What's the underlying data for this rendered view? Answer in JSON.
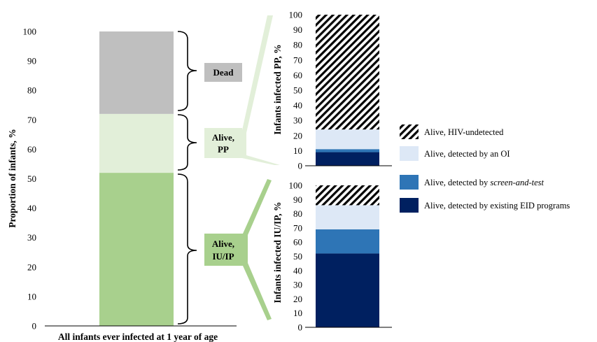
{
  "chart_data": [
    {
      "type": "bar",
      "stacked": true,
      "categories": [
        "All infants ever infected at 1 year of age"
      ],
      "xlabel": "All infants ever infected at 1 year of age",
      "ylabel": "Proportion of infants, %",
      "ylim": [
        0,
        100
      ],
      "yticks": [
        "0",
        "10",
        "20",
        "30",
        "40",
        "50",
        "60",
        "70",
        "80",
        "90",
        "100"
      ],
      "series": [
        {
          "name": "Alive, IU/IP",
          "values": [
            52
          ],
          "color": "#a8d08d"
        },
        {
          "name": "Alive, PP",
          "values": [
            20
          ],
          "color": "#e2efd9"
        },
        {
          "name": "Dead",
          "values": [
            28
          ],
          "color": "#bfbfbf"
        }
      ],
      "brace_labels": {
        "dead": "Dead",
        "pp_line1": "Alive,",
        "pp_line2": "PP",
        "iuip_line1": "Alive,",
        "iuip_line2": "IU/IP"
      }
    },
    {
      "type": "bar",
      "stacked": true,
      "ylabel": "Infants infected PP, %",
      "ylim": [
        0,
        100
      ],
      "yticks": [
        "0",
        "10",
        "20",
        "30",
        "40",
        "50",
        "60",
        "70",
        "80",
        "90",
        "100"
      ],
      "series": [
        {
          "name": "Alive, detected by existing EID programs",
          "values": [
            9
          ]
        },
        {
          "name": "Alive, detected by screen-and-test",
          "values": [
            2
          ]
        },
        {
          "name": "Alive, detected by an OI",
          "values": [
            13
          ]
        },
        {
          "name": "Alive, HIV-undetected",
          "values": [
            76
          ]
        }
      ]
    },
    {
      "type": "bar",
      "stacked": true,
      "ylabel": "Infants infected IU/IP, %",
      "ylim": [
        0,
        100
      ],
      "yticks": [
        "0",
        "10",
        "20",
        "30",
        "40",
        "50",
        "60",
        "70",
        "80",
        "90",
        "100"
      ],
      "series": [
        {
          "name": "Alive, detected by existing EID programs",
          "values": [
            52
          ]
        },
        {
          "name": "Alive, detected by screen-and-test",
          "values": [
            17
          ]
        },
        {
          "name": "Alive, detected by an OI",
          "values": [
            17
          ]
        },
        {
          "name": "Alive, HIV-undetected",
          "values": [
            14
          ]
        }
      ]
    }
  ],
  "legend": [
    {
      "prefix": "Alive, HIV-undetected",
      "italic": "",
      "swatch": "hatch"
    },
    {
      "prefix": "Alive, detected by an OI",
      "italic": "",
      "swatch": "#dde8f6"
    },
    {
      "prefix": "Alive, detected by ",
      "italic": "screen-and-test",
      "swatch": "#2e75b6"
    },
    {
      "prefix": "Alive, detected by existing EID programs",
      "italic": "",
      "swatch": "#002060"
    }
  ],
  "colors": {
    "existing_eid": "#002060",
    "screen_and_test": "#2e75b6",
    "oi": "#dde8f6",
    "undetected_stripe": "#000000"
  }
}
